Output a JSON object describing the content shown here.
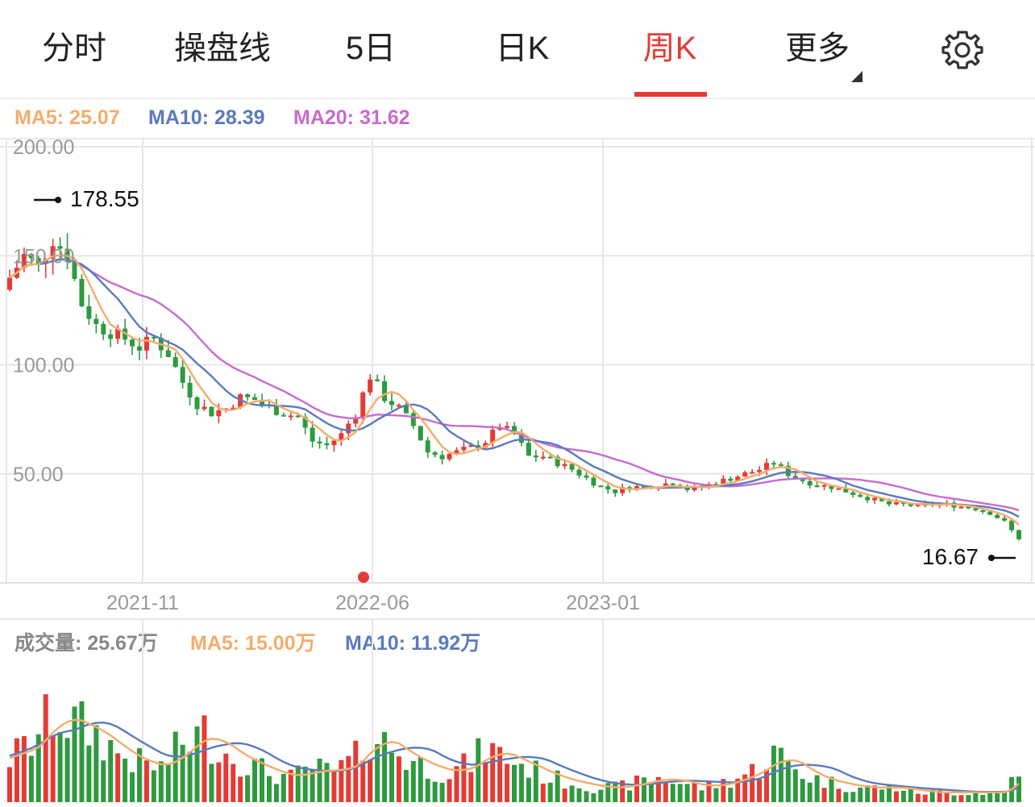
{
  "tabs": [
    {
      "label": "分时",
      "active": false
    },
    {
      "label": "操盘线",
      "active": false
    },
    {
      "label": "5日",
      "active": false
    },
    {
      "label": "日K",
      "active": false
    },
    {
      "label": "周K",
      "active": true
    },
    {
      "label": "更多",
      "active": false
    }
  ],
  "settings_icon": "gear-icon",
  "colors": {
    "up": "#e43b35",
    "down": "#2e9a3f",
    "ma5": "#f3ad6c",
    "ma10": "#5a7abd",
    "ma20": "#c86bce",
    "accent": "#e43b35"
  },
  "price_legend": {
    "ma5": "MA5: 25.07",
    "ma10": "MA10: 28.39",
    "ma20": "MA20: 31.62"
  },
  "volume_legend": {
    "vol": "成交量: 25.67万",
    "ma5": "MA5: 15.00万",
    "ma10": "MA10: 11.92万"
  },
  "chart_data": {
    "type": "candlestick",
    "y_ticks": [
      "200.00",
      "150.00",
      "100.00",
      "50.00"
    ],
    "ylim": [
      0,
      200
    ],
    "x_ticks": [
      "2021-11",
      "2022-06",
      "2023-01"
    ],
    "max_label": "178.55",
    "min_label": "16.67",
    "price_anchors": [
      [
        0,
        140
      ],
      [
        2,
        150
      ],
      [
        4,
        145
      ],
      [
        6,
        158
      ],
      [
        8,
        150
      ],
      [
        10,
        128
      ],
      [
        12,
        118
      ],
      [
        14,
        115
      ],
      [
        16,
        112
      ],
      [
        18,
        108
      ],
      [
        20,
        112
      ],
      [
        22,
        105
      ],
      [
        24,
        92
      ],
      [
        26,
        82
      ],
      [
        28,
        78
      ],
      [
        30,
        80
      ],
      [
        32,
        85
      ],
      [
        34,
        84
      ],
      [
        36,
        80
      ],
      [
        38,
        78
      ],
      [
        40,
        76
      ],
      [
        42,
        65
      ],
      [
        44,
        63
      ],
      [
        46,
        68
      ],
      [
        48,
        78
      ],
      [
        50,
        95
      ],
      [
        52,
        85
      ],
      [
        54,
        80
      ],
      [
        56,
        72
      ],
      [
        58,
        60
      ],
      [
        60,
        58
      ],
      [
        62,
        60
      ],
      [
        64,
        62
      ],
      [
        66,
        65
      ],
      [
        68,
        72
      ],
      [
        70,
        68
      ],
      [
        72,
        58
      ],
      [
        74,
        58
      ],
      [
        76,
        55
      ],
      [
        78,
        52
      ],
      [
        80,
        48
      ],
      [
        82,
        44
      ],
      [
        84,
        42
      ],
      [
        86,
        44
      ],
      [
        88,
        44
      ],
      [
        90,
        45
      ],
      [
        92,
        46
      ],
      [
        94,
        43
      ],
      [
        96,
        44
      ],
      [
        98,
        46
      ],
      [
        100,
        48
      ],
      [
        102,
        50
      ],
      [
        104,
        52
      ],
      [
        106,
        55
      ],
      [
        108,
        50
      ],
      [
        110,
        47
      ],
      [
        112,
        45
      ],
      [
        114,
        44
      ],
      [
        116,
        42
      ],
      [
        118,
        40
      ],
      [
        120,
        38
      ],
      [
        122,
        36
      ],
      [
        124,
        36
      ],
      [
        126,
        35
      ],
      [
        128,
        36
      ],
      [
        130,
        36
      ],
      [
        132,
        35
      ],
      [
        134,
        34
      ],
      [
        136,
        32
      ],
      [
        138,
        28
      ],
      [
        140,
        20
      ]
    ],
    "volume_anchors": [
      [
        0,
        9
      ],
      [
        3,
        12
      ],
      [
        6,
        18
      ],
      [
        9,
        16
      ],
      [
        12,
        14
      ],
      [
        15,
        10
      ],
      [
        18,
        8
      ],
      [
        21,
        7
      ],
      [
        24,
        12
      ],
      [
        27,
        14
      ],
      [
        30,
        10
      ],
      [
        33,
        8
      ],
      [
        36,
        6
      ],
      [
        39,
        5
      ],
      [
        42,
        7
      ],
      [
        45,
        6
      ],
      [
        48,
        9
      ],
      [
        50,
        14
      ],
      [
        52,
        12
      ],
      [
        55,
        9
      ],
      [
        58,
        7
      ],
      [
        61,
        6
      ],
      [
        64,
        8
      ],
      [
        66,
        11
      ],
      [
        69,
        9
      ],
      [
        72,
        7
      ],
      [
        75,
        5
      ],
      [
        78,
        4
      ],
      [
        81,
        3
      ],
      [
        84,
        3
      ],
      [
        87,
        4
      ],
      [
        90,
        5
      ],
      [
        93,
        4
      ],
      [
        96,
        3
      ],
      [
        99,
        4
      ],
      [
        101,
        5
      ],
      [
        104,
        7
      ],
      [
        106,
        10
      ],
      [
        108,
        8
      ],
      [
        111,
        5
      ],
      [
        114,
        4
      ],
      [
        117,
        3
      ],
      [
        120,
        3
      ],
      [
        123,
        3
      ],
      [
        126,
        2
      ],
      [
        129,
        2
      ],
      [
        132,
        2
      ],
      [
        135,
        2
      ],
      [
        138,
        2
      ],
      [
        140,
        8
      ]
    ],
    "volume_ylim": [
      0,
      25
    ]
  }
}
